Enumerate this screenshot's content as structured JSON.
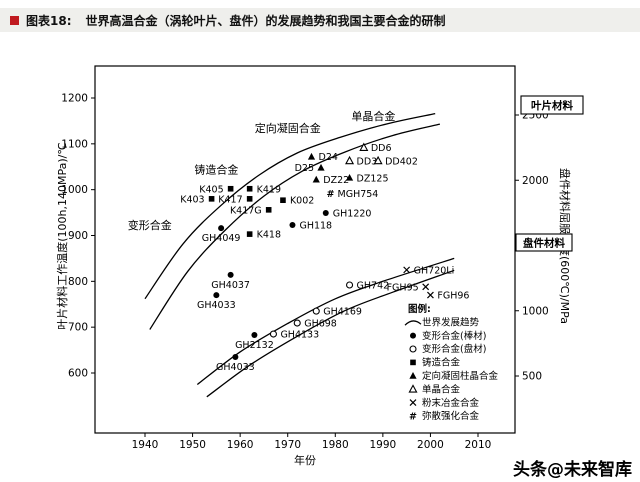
{
  "header": {
    "tag": "图表18:",
    "title": "世界高温合金（涡轮叶片、盘件）的发展趋势和我国主要合金的研制"
  },
  "footer": {
    "watermark": "头条@未来智库"
  },
  "chart_data": {
    "type": "scatter",
    "title": "世界高温合金（涡轮叶片、盘件）的发展趋势和我国主要合金的研制",
    "xlabel": "年份",
    "ylabel_left": "叶片材料工作温度(100h,140MPa)/℃",
    "ylabel_right": "盘件材料屈服强度(600℃)/MPa",
    "x_ticks": [
      1940,
      1950,
      1960,
      1970,
      1980,
      1990,
      2000,
      2010
    ],
    "y_ticks_left": [
      600,
      700,
      800,
      900,
      1000,
      1100,
      1200
    ],
    "y_ticks_right": [
      500,
      1000,
      1500,
      2000,
      2500
    ],
    "xlim": [
      1929,
      2018
    ],
    "ylim_left": [
      600,
      1200
    ],
    "ylim_right": [
      500,
      2500
    ],
    "grid": false,
    "legend_position": "lower-right-inside",
    "group_labels": [
      {
        "text": "单晶合金",
        "year": 1988,
        "temp": 1152
      },
      {
        "text": "定向凝固合金",
        "year": 1970,
        "temp": 1126
      },
      {
        "text": "铸造合金",
        "year": 1955,
        "temp": 1035
      },
      {
        "text": "变形合金",
        "year": 1941,
        "temp": 914
      }
    ],
    "box_labels": [
      {
        "text": "叶片材料",
        "x": 521,
        "y": 62,
        "w": 62,
        "h": 18
      },
      {
        "text": "盘件材料",
        "x": 516,
        "y": 200,
        "w": 56,
        "h": 17
      }
    ],
    "trend_bands": {
      "blade_upper": [
        [
          1940,
          762
        ],
        [
          1948,
          882
        ],
        [
          1956,
          966
        ],
        [
          1964,
          1032
        ],
        [
          1972,
          1080
        ],
        [
          1981,
          1114
        ],
        [
          1991,
          1144
        ],
        [
          2001,
          1166
        ]
      ],
      "blade_lower": [
        [
          1941,
          695
        ],
        [
          1949,
          822
        ],
        [
          1957,
          913
        ],
        [
          1965,
          986
        ],
        [
          1973,
          1040
        ],
        [
          1982,
          1082
        ],
        [
          1992,
          1118
        ],
        [
          2002,
          1143
        ]
      ],
      "disk_upper": [
        [
          1951,
          575
        ],
        [
          1960,
          646
        ],
        [
          1970,
          708
        ],
        [
          1980,
          762
        ],
        [
          1990,
          800
        ],
        [
          2005,
          850
        ]
      ],
      "disk_lower": [
        [
          1953,
          548
        ],
        [
          1962,
          617
        ],
        [
          1972,
          680
        ],
        [
          1982,
          736
        ],
        [
          1992,
          776
        ],
        [
          2005,
          824
        ]
      ]
    },
    "points": [
      {
        "label": "DD6",
        "sym": "ot",
        "year": 1986,
        "temp": 1092,
        "lp": "r"
      },
      {
        "label": "DD3",
        "sym": "ot",
        "year": 1983,
        "temp": 1063,
        "lp": "r"
      },
      {
        "label": "DD402",
        "sym": "ot",
        "year": 1989,
        "temp": 1063,
        "lp": "r"
      },
      {
        "label": "D24",
        "sym": "ft",
        "year": 1975,
        "temp": 1072,
        "lp": "r"
      },
      {
        "label": "D25",
        "sym": "ft",
        "year": 1977,
        "temp": 1048,
        "lp": "l"
      },
      {
        "label": "DZ22",
        "sym": "ft",
        "year": 1976,
        "temp": 1022,
        "lp": "r"
      },
      {
        "label": "DZ125",
        "sym": "ft",
        "year": 1983,
        "temp": 1026,
        "lp": "r"
      },
      {
        "label": "MGH754",
        "sym": "h",
        "year": 1979,
        "temp": 992,
        "lp": "r"
      },
      {
        "label": "K405",
        "sym": "fs",
        "year": 1958,
        "temp": 1002,
        "lp": "l"
      },
      {
        "label": "K419",
        "sym": "fs",
        "year": 1962,
        "temp": 1002,
        "lp": "r"
      },
      {
        "label": "K403",
        "sym": "fs",
        "year": 1954,
        "temp": 980,
        "lp": "l"
      },
      {
        "label": "K417",
        "sym": "fs",
        "year": 1962,
        "temp": 980,
        "lp": "l"
      },
      {
        "label": "K417G",
        "sym": "fs",
        "year": 1966,
        "temp": 956,
        "lp": "l"
      },
      {
        "label": "K002",
        "sym": "fs",
        "year": 1969,
        "temp": 977,
        "lp": "r"
      },
      {
        "label": "GH1220",
        "sym": "fc",
        "year": 1978,
        "temp": 949,
        "lp": "r"
      },
      {
        "label": "GH118",
        "sym": "fc",
        "year": 1971,
        "temp": 923,
        "lp": "r"
      },
      {
        "label": "K418",
        "sym": "fs",
        "year": 1962,
        "temp": 903,
        "lp": "r"
      },
      {
        "label": "GH4049",
        "sym": "fc",
        "year": 1956,
        "temp": 916,
        "lp": "b"
      },
      {
        "label": "GH4037",
        "sym": "fc",
        "year": 1958,
        "temp": 814,
        "lp": "b"
      },
      {
        "label": "GH4033",
        "sym": "fc",
        "year": 1955,
        "temp": 770,
        "lp": "b"
      },
      {
        "label": "GH2132",
        "sym": "fc",
        "year": 1963,
        "temp": 683,
        "lp": "b"
      },
      {
        "label": "GH4033",
        "sym": "fc",
        "year": 1959,
        "temp": 635,
        "lp": "b"
      },
      {
        "label": "GH4133",
        "sym": "oc",
        "year": 1967,
        "temp": 685,
        "lp": "r"
      },
      {
        "label": "GH698",
        "sym": "oc",
        "year": 1972,
        "temp": 709,
        "lp": "r"
      },
      {
        "label": "GH4169",
        "sym": "oc",
        "year": 1976,
        "temp": 735,
        "lp": "r"
      },
      {
        "label": "GH742",
        "sym": "oc",
        "year": 1983,
        "temp": 792,
        "lp": "r"
      },
      {
        "label": "GH720Li",
        "sym": "x",
        "year": 1995,
        "temp": 825,
        "lp": "r"
      },
      {
        "label": "FGH95",
        "sym": "x",
        "year": 1999,
        "temp": 788,
        "lp": "l"
      },
      {
        "label": "FGH96",
        "sym": "x",
        "year": 2000,
        "temp": 770,
        "lp": "r"
      }
    ],
    "legend": {
      "title": "图例:",
      "items": [
        {
          "sym": "trend",
          "label": "世界发展趋势"
        },
        {
          "sym": "fc",
          "label": "变形合金(棒材)"
        },
        {
          "sym": "oc",
          "label": "变形合金(盘材)"
        },
        {
          "sym": "fs",
          "label": "铸造合金"
        },
        {
          "sym": "ft",
          "label": "定向凝固柱晶合金"
        },
        {
          "sym": "ot",
          "label": "单晶合金"
        },
        {
          "sym": "x",
          "label": "粉末冶金合金"
        },
        {
          "sym": "h",
          "label": "弥散强化合金"
        }
      ]
    }
  }
}
